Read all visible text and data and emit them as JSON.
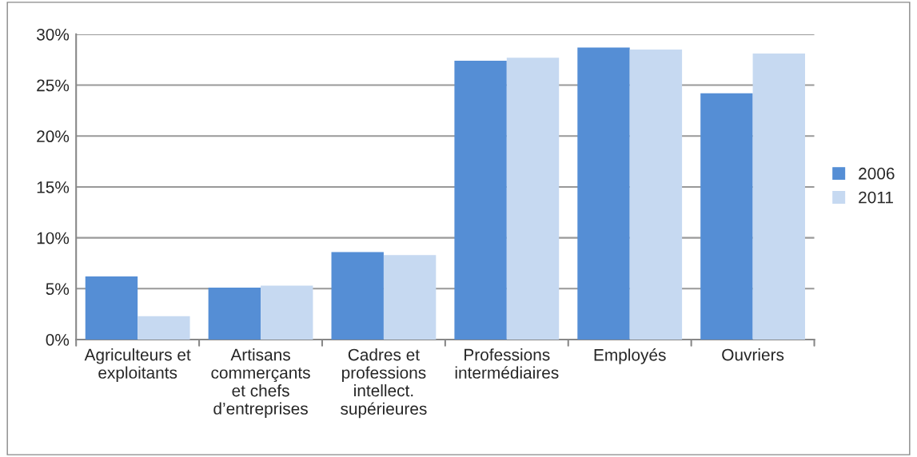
{
  "chart_data": {
    "type": "bar",
    "categories": [
      "Agriculteurs et\nexploitants",
      "Artisans\ncommerçants\net chefs\nd’entreprises",
      "Cadres et\nprofessions\nintellect.\nsupérieures",
      "Professions\nintermédiaires",
      "Employés",
      "Ouvriers"
    ],
    "series": [
      {
        "name": "2006",
        "color": "#558ed5",
        "values": [
          6.2,
          5.1,
          8.6,
          27.4,
          28.7,
          24.2
        ]
      },
      {
        "name": "2011",
        "color": "#c6d9f1",
        "values": [
          2.3,
          5.3,
          8.3,
          27.7,
          28.5,
          28.1
        ]
      }
    ],
    "ylim": [
      0,
      30
    ],
    "yticks": [
      {
        "value": 0,
        "label": "0%"
      },
      {
        "value": 5,
        "label": "5%"
      },
      {
        "value": 10,
        "label": "10%"
      },
      {
        "value": 15,
        "label": "15%"
      },
      {
        "value": 20,
        "label": "20%"
      },
      {
        "value": 25,
        "label": "25%"
      },
      {
        "value": 30,
        "label": "30%"
      }
    ],
    "grid": "y",
    "legend": "right"
  }
}
